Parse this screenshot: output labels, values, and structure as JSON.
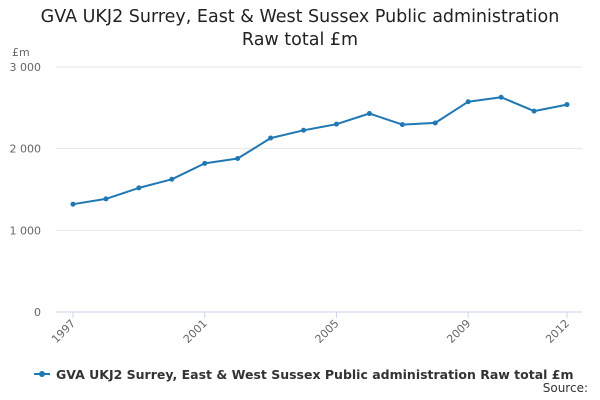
{
  "colors": {
    "series": "#1f78b4",
    "grid": "#e6e6e6",
    "axis": "#ccd6eb"
  },
  "title": {
    "line1": "GVA UKJ2 Surrey, East & West Sussex Public administration",
    "line2": "Raw total £m"
  },
  "legend": {
    "label": "GVA UKJ2 Surrey, East & West Sussex Public administration Raw total £m"
  },
  "source_label": "Source:",
  "chart_data": {
    "type": "line",
    "title": "GVA UKJ2 Surrey, East & West Sussex Public administration Raw total £m",
    "ylabel": "£m",
    "ylim": [
      0,
      3000
    ],
    "yticks": [
      0,
      1000,
      2000,
      3000
    ],
    "ytick_labels": [
      "0",
      "1 000",
      "2 000",
      "3 000"
    ],
    "xticks": [
      1997,
      2001,
      2005,
      2009,
      2012
    ],
    "xlim": [
      1997,
      2012
    ],
    "grid": true,
    "legend_position": "bottom-left",
    "series": [
      {
        "name": "GVA UKJ2 Surrey, East & West Sussex Public administration Raw total £m",
        "x": [
          1997,
          1998,
          1999,
          2000,
          2001,
          2002,
          2003,
          2004,
          2005,
          2006,
          2007,
          2008,
          2009,
          2010,
          2011,
          2012
        ],
        "values": [
          1320,
          1385,
          1520,
          1625,
          1820,
          1880,
          2130,
          2225,
          2300,
          2430,
          2295,
          2315,
          2575,
          2630,
          2460,
          2540
        ]
      }
    ]
  }
}
